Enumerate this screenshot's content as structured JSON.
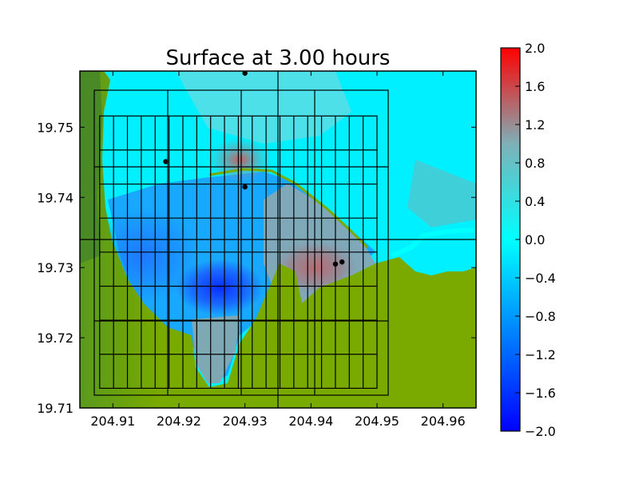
{
  "chart_data": {
    "type": "heatmap",
    "title": "Surface at 3.00 hours",
    "xlabel": "",
    "ylabel": "",
    "xlim": [
      204.905,
      204.965
    ],
    "ylim": [
      19.71,
      19.758
    ],
    "x_ticks": [
      204.91,
      204.92,
      204.93,
      204.94,
      204.95,
      204.96
    ],
    "x_tick_labels": [
      "204.91",
      "204.92",
      "204.93",
      "204.94",
      "204.95",
      "204.96"
    ],
    "y_ticks": [
      19.71,
      19.72,
      19.73,
      19.74,
      19.75
    ],
    "y_tick_labels": [
      "19.71",
      "19.72",
      "19.73",
      "19.74",
      "19.75"
    ],
    "colorbar": {
      "range": [
        -2.0,
        2.0
      ],
      "ticks": [
        2.0,
        1.6,
        1.2,
        0.8,
        0.4,
        0.0,
        -0.4,
        -0.8,
        -1.2,
        -1.6,
        -2.0
      ],
      "tick_labels": [
        "2.0",
        "1.6",
        "1.2",
        "0.8",
        "0.4",
        "0.0",
        "−0.4",
        "−0.8",
        "−1.2",
        "−1.6",
        "−2.0"
      ],
      "colors": [
        "#0000ff",
        "#00ffff",
        "#ff0000"
      ]
    },
    "land_color": "#7aaa00",
    "gauges": [
      {
        "x": 204.93,
        "y": 19.7577
      },
      {
        "x": 204.918,
        "y": 19.7451
      },
      {
        "x": 204.93,
        "y": 19.7415
      },
      {
        "x": 204.9437,
        "y": 19.7305
      },
      {
        "x": 204.9447,
        "y": 19.7308
      }
    ],
    "amr_patches": [
      {
        "x0": 204.9068,
        "x1": 204.9516,
        "y0": 19.7118,
        "y1": 19.7554,
        "xs": [
          204.9068,
          204.918,
          204.9292,
          204.9404,
          204.9516
        ],
        "ys": [
          19.7118,
          19.7227,
          19.7336,
          19.7445,
          19.7554
        ]
      },
      {
        "x0": 204.908,
        "x1": 204.95,
        "y0": 19.7128,
        "y1": 19.7516,
        "dx": 0.0021,
        "dy": 0.00485
      }
    ],
    "domain_dividers": {
      "x": 204.935,
      "y": 19.734
    }
  }
}
